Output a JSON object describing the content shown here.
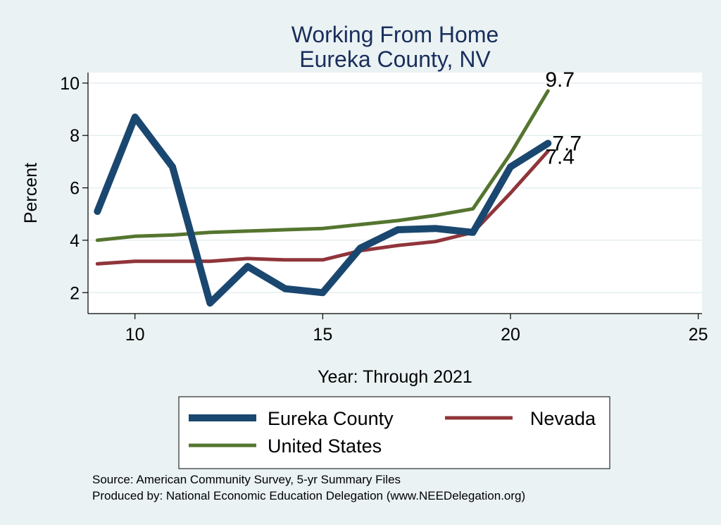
{
  "chart_data": {
    "type": "line",
    "title": [
      "Working From Home",
      "Eureka County, NV"
    ],
    "xlabel": "Year: Through 2021",
    "ylabel": "Percent",
    "xlim": [
      8.75,
      25.1
    ],
    "ylim": [
      1.2,
      10.4
    ],
    "xticks": [
      10,
      15,
      20,
      25
    ],
    "yticks": [
      2,
      4,
      6,
      8,
      10
    ],
    "grid": true,
    "legend_position": "bottom",
    "series": [
      {
        "name": "Eureka County",
        "color": "#1a476f",
        "width": 10,
        "x": [
          9,
          10,
          11,
          12,
          13,
          14,
          15,
          16,
          17,
          18,
          19,
          20,
          21
        ],
        "values": [
          5.1,
          8.7,
          6.8,
          1.6,
          3.0,
          2.15,
          2.0,
          3.7,
          4.4,
          4.45,
          4.3,
          6.8,
          7.7
        ],
        "end_label": "7.7"
      },
      {
        "name": "Nevada",
        "color": "#90353b",
        "width": 5,
        "x": [
          9,
          10,
          11,
          12,
          13,
          14,
          15,
          16,
          17,
          18,
          19,
          20,
          21
        ],
        "values": [
          3.1,
          3.2,
          3.2,
          3.2,
          3.3,
          3.25,
          3.25,
          3.6,
          3.8,
          3.95,
          4.3,
          5.8,
          7.4
        ],
        "end_label": "7.4"
      },
      {
        "name": "United States",
        "color": "#55752f",
        "width": 5,
        "x": [
          9,
          10,
          11,
          12,
          13,
          14,
          15,
          16,
          17,
          18,
          19,
          20,
          21
        ],
        "values": [
          4.0,
          4.15,
          4.2,
          4.3,
          4.35,
          4.4,
          4.45,
          4.6,
          4.75,
          4.95,
          5.2,
          7.3,
          9.7
        ],
        "end_label": "9.7"
      }
    ]
  },
  "notes": {
    "source": "Source: American Community Survey, 5-yr Summary Files",
    "produced": "Produced by: National Economic Education Delegation (www.NEEDelegation.org)"
  }
}
